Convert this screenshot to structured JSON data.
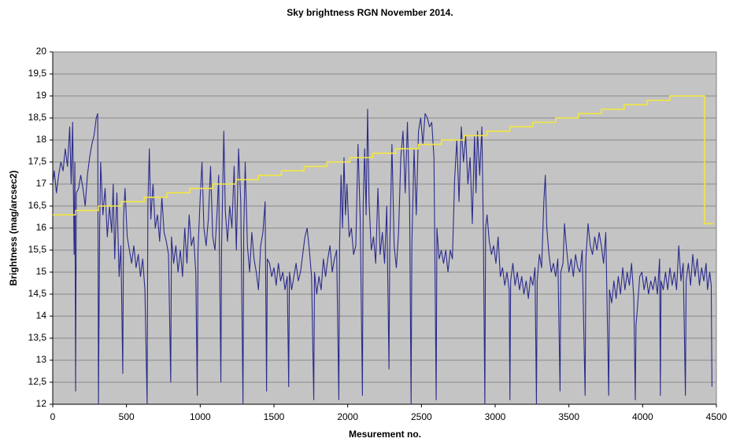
{
  "chart_data": {
    "type": "line",
    "title": "Sky brightness RGN November 2014.",
    "xlabel": "Mesurement no.",
    "ylabel": "Brightness (mag/arcsec2)",
    "xlim": [
      0,
      4500
    ],
    "xticks": [
      0,
      500,
      1000,
      1500,
      2000,
      2500,
      3000,
      3500,
      4000,
      4500
    ],
    "ylim": [
      12,
      20
    ],
    "yticks": [
      12,
      {
        "value": 12.5,
        "label": "12,5"
      },
      13,
      {
        "value": 13.5,
        "label": "13,5"
      },
      14,
      {
        "value": 14.5,
        "label": "14,5"
      },
      15,
      {
        "value": 15.5,
        "label": "15,5"
      },
      16,
      {
        "value": 16.5,
        "label": "16,5"
      },
      17,
      {
        "value": 17.5,
        "label": "17,5"
      },
      18,
      {
        "value": 18.5,
        "label": "18,5"
      },
      19,
      {
        "value": 19.5,
        "label": "19,5"
      },
      20
    ],
    "grid": true,
    "series": [
      {
        "color": "#2b2b8c",
        "x": [
          0,
          10,
          25,
          40,
          55,
          70,
          85,
          100,
          115,
          125,
          135,
          145,
          150,
          155,
          160,
          175,
          190,
          205,
          220,
          235,
          250,
          265,
          280,
          295,
          305,
          310,
          318,
          325,
          340,
          355,
          370,
          385,
          400,
          410,
          420,
          435,
          450,
          462,
          475,
          480,
          490,
          505,
          520,
          535,
          550,
          565,
          580,
          595,
          610,
          625,
          640,
          645,
          655,
          665,
          680,
          695,
          710,
          725,
          740,
          755,
          770,
          785,
          800,
          805,
          820,
          835,
          850,
          865,
          880,
          895,
          910,
          925,
          940,
          955,
          970,
          980,
          985,
          1000,
          1012,
          1025,
          1040,
          1055,
          1070,
          1085,
          1100,
          1115,
          1125,
          1140,
          1145,
          1160,
          1170,
          1185,
          1200,
          1215,
          1230,
          1245,
          1260,
          1275,
          1290,
          1295,
          1305,
          1320,
          1335,
          1350,
          1365,
          1380,
          1395,
          1410,
          1425,
          1440,
          1450,
          1455,
          1470,
          1485,
          1500,
          1515,
          1530,
          1545,
          1560,
          1575,
          1590,
          1600,
          1605,
          1620,
          1635,
          1650,
          1665,
          1680,
          1695,
          1710,
          1725,
          1740,
          1755,
          1770,
          1775,
          1790,
          1805,
          1820,
          1835,
          1850,
          1865,
          1880,
          1895,
          1910,
          1925,
          1940,
          1945,
          1955,
          1965,
          1975,
          1985,
          1995,
          2010,
          2025,
          2040,
          2055,
          2070,
          2085,
          2100,
          2105,
          2115,
          2125,
          2135,
          2145,
          2160,
          2175,
          2190,
          2205,
          2220,
          2235,
          2250,
          2265,
          2280,
          2285,
          2300,
          2315,
          2330,
          2345,
          2360,
          2375,
          2390,
          2405,
          2420,
          2430,
          2435,
          2450,
          2465,
          2480,
          2495,
          2510,
          2525,
          2540,
          2555,
          2570,
          2585,
          2600,
          2605,
          2620,
          2635,
          2650,
          2665,
          2680,
          2695,
          2710,
          2725,
          2740,
          2755,
          2770,
          2785,
          2800,
          2815,
          2830,
          2845,
          2860,
          2870,
          2880,
          2895,
          2910,
          2920,
          2930,
          2935,
          2945,
          2960,
          2975,
          2990,
          3005,
          3020,
          3035,
          3050,
          3065,
          3080,
          3095,
          3100,
          3105,
          3120,
          3135,
          3150,
          3165,
          3180,
          3195,
          3210,
          3225,
          3240,
          3255,
          3270,
          3280,
          3285,
          3300,
          3315,
          3330,
          3340,
          3350,
          3365,
          3380,
          3395,
          3410,
          3425,
          3440,
          3445,
          3460,
          3470,
          3485,
          3500,
          3515,
          3530,
          3545,
          3560,
          3575,
          3590,
          3610,
          3615,
          3630,
          3645,
          3660,
          3675,
          3690,
          3705,
          3720,
          3735,
          3750,
          3770,
          3775,
          3790,
          3805,
          3820,
          3835,
          3850,
          3865,
          3880,
          3895,
          3910,
          3925,
          3940,
          3950,
          3955,
          3965,
          3980,
          3995,
          4010,
          4025,
          4040,
          4055,
          4070,
          4085,
          4100,
          4115,
          4120,
          4125,
          4140,
          4155,
          4170,
          4185,
          4200,
          4215,
          4230,
          4245,
          4260,
          4275,
          4290,
          4295,
          4310,
          4325,
          4340,
          4355,
          4370,
          4385,
          4400,
          4415,
          4430,
          4440,
          4455,
          4465,
          4470
        ],
        "values": [
          17.0,
          17.3,
          16.8,
          17.2,
          17.5,
          17.3,
          17.8,
          17.4,
          18.3,
          17.0,
          18.4,
          15.4,
          17.5,
          12.3,
          16.8,
          16.9,
          17.2,
          16.9,
          16.5,
          17.2,
          17.6,
          17.9,
          18.1,
          18.5,
          18.6,
          12.0,
          16.0,
          17.5,
          16.3,
          16.9,
          15.8,
          16.5,
          15.9,
          17.0,
          15.3,
          16.8,
          14.9,
          15.6,
          12.7,
          16.2,
          16.9,
          15.8,
          15.5,
          15.2,
          15.6,
          15.1,
          15.4,
          14.9,
          15.3,
          14.6,
          12.0,
          16.5,
          17.8,
          16.2,
          17.0,
          16.0,
          16.3,
          15.7,
          16.7,
          15.9,
          15.7,
          15.4,
          12.5,
          15.8,
          15.2,
          15.6,
          15.0,
          15.5,
          14.9,
          16.0,
          15.2,
          16.3,
          15.6,
          15.8,
          15.0,
          12.2,
          15.5,
          16.7,
          17.5,
          16.0,
          15.6,
          16.2,
          17.4,
          15.8,
          15.5,
          16.4,
          17.2,
          12.5,
          15.6,
          18.2,
          16.4,
          15.7,
          16.5,
          16.0,
          17.4,
          15.5,
          17.8,
          16.6,
          12.0,
          15.9,
          17.5,
          15.6,
          15.0,
          15.9,
          15.3,
          15.0,
          14.6,
          15.6,
          15.9,
          16.6,
          12.3,
          15.3,
          15.2,
          14.9,
          15.1,
          14.7,
          15.2,
          14.8,
          15.0,
          14.6,
          14.9,
          12.4,
          15.0,
          14.6,
          14.9,
          15.2,
          14.8,
          15.0,
          15.4,
          15.8,
          16.0,
          15.5,
          14.9,
          12.1,
          15.0,
          14.5,
          14.9,
          14.6,
          15.3,
          14.9,
          15.3,
          15.6,
          15.0,
          15.3,
          15.5,
          12.1,
          15.6,
          17.2,
          16.0,
          17.6,
          16.3,
          17.0,
          15.8,
          16.0,
          15.4,
          15.6,
          17.9,
          16.2,
          12.2,
          16.5,
          17.8,
          16.3,
          18.7,
          16.6,
          15.5,
          15.8,
          15.2,
          16.9,
          15.4,
          15.9,
          15.2,
          16.5,
          12.8,
          15.5,
          17.9,
          15.6,
          15.1,
          15.9,
          17.6,
          18.2,
          16.8,
          18.4,
          16.5,
          12.0,
          15.6,
          17.8,
          16.3,
          18.2,
          18.5,
          17.9,
          18.6,
          18.5,
          18.3,
          18.4,
          17.6,
          12.1,
          16.0,
          15.3,
          15.5,
          15.2,
          15.5,
          15.0,
          15.5,
          15.3,
          17.1,
          18.0,
          16.6,
          18.3,
          17.5,
          18.1,
          17.0,
          17.6,
          16.1,
          18.1,
          16.8,
          18.2,
          17.2,
          18.3,
          15.9,
          12.0,
          16.0,
          16.3,
          15.7,
          15.4,
          15.6,
          15.2,
          15.8,
          14.9,
          15.1,
          14.7,
          15.0,
          14.6,
          12.1,
          14.8,
          15.2,
          14.7,
          15.0,
          14.6,
          14.9,
          14.5,
          14.8,
          14.4,
          14.9,
          14.7,
          15.1,
          12.0,
          14.8,
          15.4,
          15.1,
          16.6,
          17.2,
          16.0,
          15.4,
          15.0,
          15.2,
          14.9,
          15.3,
          12.3,
          15.0,
          15.2,
          16.1,
          15.5,
          15.0,
          15.3,
          14.9,
          15.4,
          15.1,
          15.0,
          15.5,
          12.2,
          15.3,
          16.1,
          15.6,
          15.4,
          15.8,
          15.5,
          15.9,
          15.6,
          15.2,
          15.9,
          12.2,
          14.6,
          14.3,
          14.8,
          14.4,
          14.9,
          14.5,
          15.1,
          14.6,
          15.0,
          14.7,
          15.2,
          14.4,
          12.1,
          13.8,
          14.2,
          14.9,
          15.0,
          14.6,
          14.9,
          14.5,
          14.8,
          14.6,
          14.9,
          14.5,
          15.3,
          12.2,
          14.8,
          14.6,
          15.0,
          14.6,
          15.1,
          14.7,
          15.0,
          14.6,
          15.6,
          14.8,
          15.2,
          12.2,
          14.8,
          15.2,
          14.7,
          15.4,
          14.9,
          15.3,
          14.7,
          15.1,
          14.8,
          15.2,
          14.6,
          15.0,
          14.7,
          12.4
        ]
      },
      {
        "color": "#f2e640",
        "x": [
          0,
          155,
          155,
          310,
          310,
          465,
          465,
          620,
          620,
          775,
          775,
          930,
          930,
          1085,
          1085,
          1240,
          1240,
          1395,
          1395,
          1550,
          1550,
          1705,
          1705,
          1860,
          1860,
          2015,
          2015,
          2170,
          2170,
          2325,
          2325,
          2480,
          2480,
          2635,
          2635,
          2790,
          2790,
          2945,
          2945,
          3100,
          3100,
          3255,
          3255,
          3410,
          3410,
          3565,
          3565,
          3720,
          3720,
          3875,
          3875,
          4030,
          4030,
          4185,
          4185,
          4420,
          4420,
          4480
        ],
        "values": [
          16.3,
          16.3,
          16.4,
          16.4,
          16.5,
          16.5,
          16.6,
          16.6,
          16.7,
          16.7,
          16.8,
          16.8,
          16.9,
          16.9,
          17.0,
          17.0,
          17.1,
          17.1,
          17.2,
          17.2,
          17.3,
          17.3,
          17.4,
          17.4,
          17.5,
          17.5,
          17.6,
          17.6,
          17.7,
          17.7,
          17.8,
          17.8,
          17.9,
          17.9,
          18.0,
          18.0,
          18.1,
          18.1,
          18.2,
          18.2,
          18.3,
          18.3,
          18.4,
          18.4,
          18.5,
          18.5,
          18.6,
          18.6,
          18.7,
          18.7,
          18.8,
          18.8,
          18.9,
          18.9,
          19.0,
          19.0,
          16.1,
          16.1
        ]
      }
    ]
  }
}
